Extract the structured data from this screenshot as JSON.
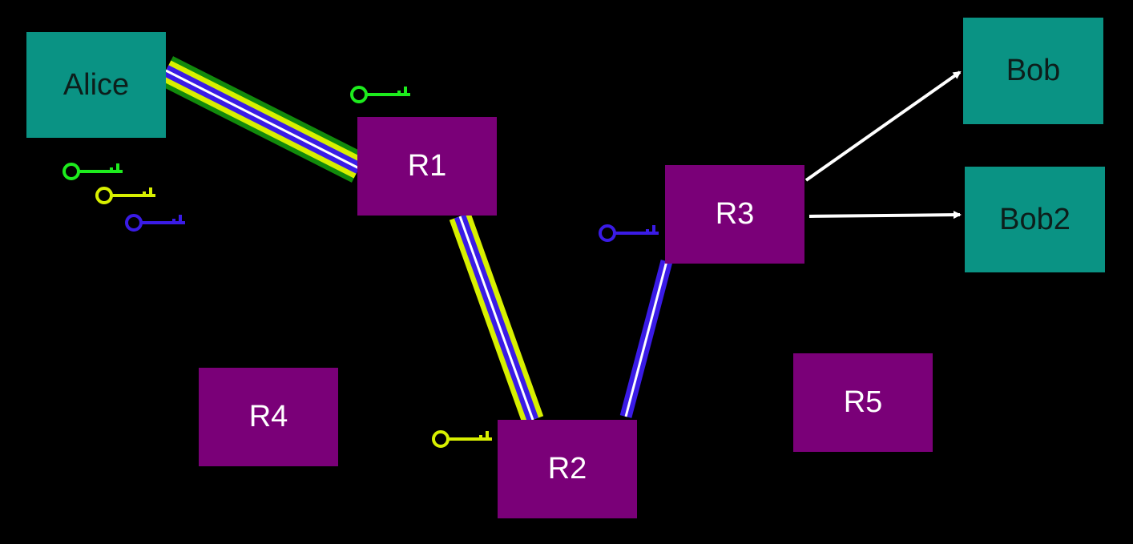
{
  "colors": {
    "background": "#000000",
    "endpoint": "#0a9384",
    "router": "#7a0078",
    "key_green": "#1dec1d",
    "key_yellow": "#d8f000",
    "key_blue": "#3a1be6",
    "outer_layer": "#128a0c",
    "arrow": "#ffffff"
  },
  "nodes": {
    "alice": "Alice",
    "bob": "Bob",
    "bob2": "Bob2",
    "r1": "R1",
    "r2": "R2",
    "r3": "R3",
    "r4": "R4",
    "r5": "R5"
  },
  "keys": {
    "alice": [
      "key_green",
      "key_yellow",
      "key_blue"
    ],
    "r1": "key_green",
    "r2": "key_yellow",
    "r3": "key_blue"
  },
  "circuit": {
    "path": [
      "Alice",
      "R1",
      "R2",
      "R3"
    ],
    "encryption_layers": {
      "alice_r1": [
        "key_green",
        "key_yellow",
        "key_blue"
      ],
      "r1_r2": [
        "key_yellow",
        "key_blue"
      ],
      "r2_r3": [
        "key_blue"
      ]
    },
    "exit_streams": [
      {
        "from": "R3",
        "to": "Bob"
      },
      {
        "from": "R3",
        "to": "Bob2"
      }
    ]
  }
}
